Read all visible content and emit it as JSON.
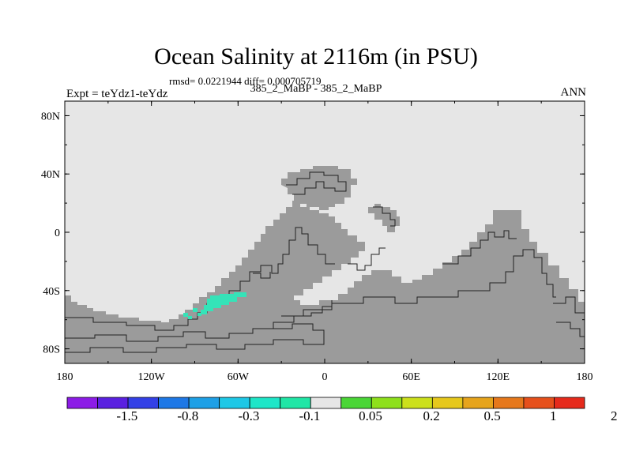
{
  "plot": {
    "title": "Ocean Salinity at 2116m (in PSU)",
    "stats": "rmsd= 0.0221944 diff= 0.000705719",
    "case_label": "385_2_MaBP - 385_2_MaBP",
    "experiment": "Expt = teYdz1-teYdz",
    "season": "ANN"
  },
  "map": {
    "projection": "cylindrical-equidistant",
    "lon_range": [
      -180,
      180
    ],
    "lat_range": [
      -90,
      90
    ],
    "lat_ticks": [
      {
        "value": 80,
        "label": "80N"
      },
      {
        "value": 40,
        "label": "40N"
      },
      {
        "value": 0,
        "label": "0"
      },
      {
        "value": -40,
        "label": "40S"
      },
      {
        "value": -80,
        "label": "80S"
      }
    ],
    "lon_ticks": [
      {
        "value": -180,
        "label": "180"
      },
      {
        "value": -120,
        "label": "120W"
      },
      {
        "value": -60,
        "label": "60W"
      },
      {
        "value": 0,
        "label": "0"
      },
      {
        "value": 60,
        "label": "60E"
      },
      {
        "value": 120,
        "label": "120E"
      },
      {
        "value": 180,
        "label": "180"
      }
    ],
    "colors": {
      "ocean": "#e6e6e6",
      "land": "#9b9b9b",
      "coast": "#222222",
      "anomaly": "#35e3b8"
    }
  },
  "colorbar": {
    "colors": [
      "#8c1ce6",
      "#5a20e0",
      "#3340e6",
      "#1e78e6",
      "#1ea0e6",
      "#1ec8e6",
      "#1ee6c8",
      "#20e6a6",
      "#e6e6e6",
      "#4ad636",
      "#8ee01c",
      "#cce01c",
      "#e6c81c",
      "#e6a41c",
      "#e6781c",
      "#e6501c",
      "#e62a1c"
    ],
    "labels": [
      "-1.5",
      "-0.8",
      "-0.3",
      "-0.1",
      "0.05",
      "0.2",
      "0.5",
      "1",
      "2"
    ]
  }
}
